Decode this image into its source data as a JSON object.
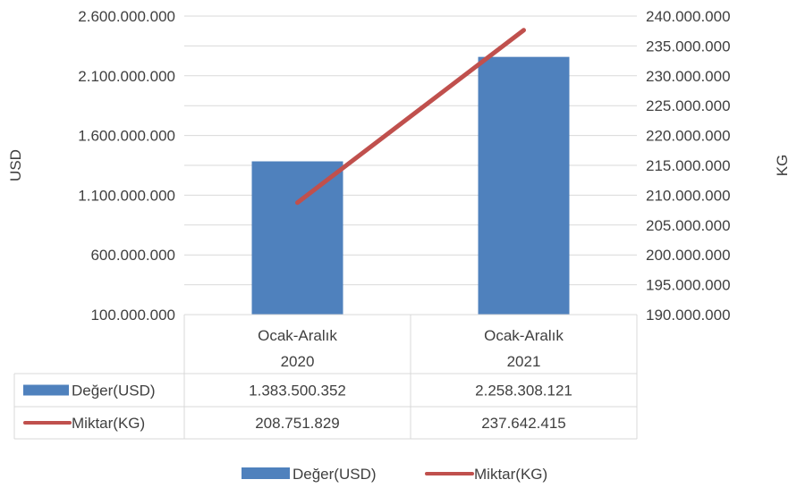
{
  "chart_data": {
    "type": "bar+line",
    "categories": [
      [
        "Ocak-Aralık",
        "2020"
      ],
      [
        "Ocak-Aralık",
        "2021"
      ]
    ],
    "series": [
      {
        "name": "Değer(USD)",
        "type": "bar",
        "axis": "left",
        "color": "#4F81BD",
        "values": [
          1383500352,
          2258308121
        ],
        "labels": [
          "1.383.500.352",
          "2.258.308.121"
        ]
      },
      {
        "name": "Miktar(KG)",
        "type": "line",
        "axis": "right",
        "color": "#C0504D",
        "values": [
          208751829,
          237642415
        ],
        "labels": [
          "208.751.829",
          "237.642.415"
        ]
      }
    ],
    "y_left": {
      "label": "USD",
      "min": 100000000,
      "max": 2600000000,
      "major": 500000000,
      "tick_labels": [
        "100.000.000",
        "600.000.000",
        "1.100.000.000",
        "1.600.000.000",
        "2.100.000.000",
        "2.600.000.000"
      ]
    },
    "y_right": {
      "label": "KG",
      "min": 190000000,
      "max": 240000000,
      "major": 5000000,
      "tick_labels": [
        "190.000.000",
        "195.000.000",
        "200.000.000",
        "205.000.000",
        "210.000.000",
        "215.000.000",
        "220.000.000",
        "225.000.000",
        "230.000.000",
        "235.000.000",
        "240.000.000"
      ]
    },
    "gridlines": true,
    "data_table": true,
    "legend": "bottom"
  }
}
